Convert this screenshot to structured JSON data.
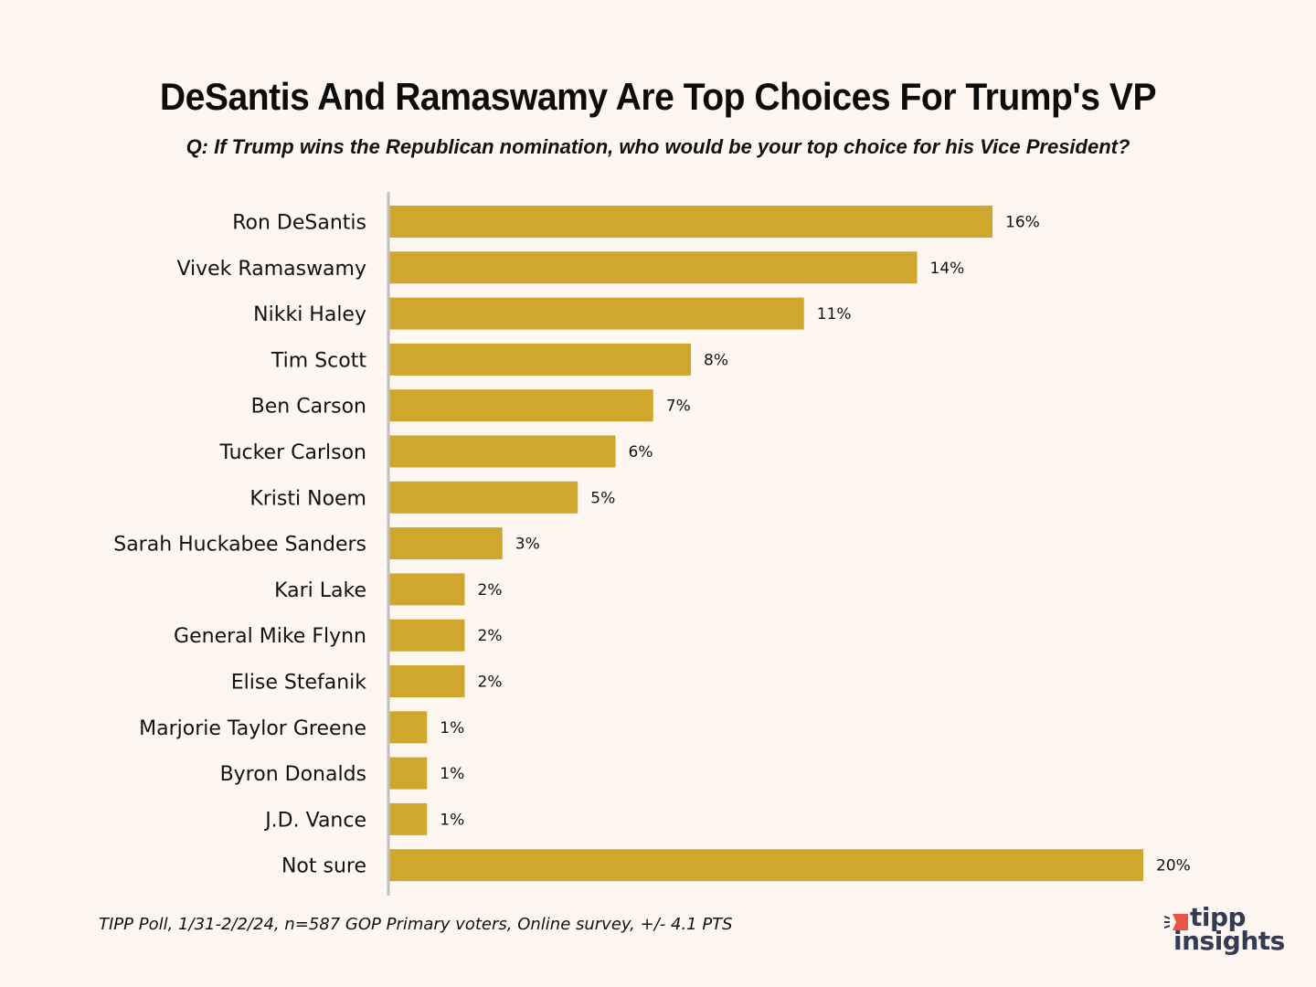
{
  "header": {
    "title": "DeSantis And Ramaswamy Are Top Choices For Trump's VP",
    "subtitle": "Q: If Trump wins the Republican nomination, who would be your top choice for his Vice President?"
  },
  "footer": {
    "source": "TIPP Poll, 1/31-2/2/24, n=587 GOP Primary voters, Online survey, +/- 4.1 PTS"
  },
  "logo": {
    "line1": "tipp",
    "line2": "insights",
    "accent_color": "#e8544a",
    "text_color": "#363a52"
  },
  "colors": {
    "bar": "#cfa72f",
    "axis": "#c0bfc4",
    "background": "#fdf6f1"
  },
  "chart_data": {
    "type": "bar",
    "orientation": "horizontal",
    "title": "DeSantis And Ramaswamy Are Top Choices For Trump's VP",
    "subtitle": "Q: If Trump wins the Republican nomination, who would be your top choice for his Vice President?",
    "xlabel": "",
    "ylabel": "",
    "unit": "%",
    "xlim": [
      0,
      20
    ],
    "grid": false,
    "legend": "none",
    "categories": [
      "Ron DeSantis",
      "Vivek Ramaswamy",
      "Nikki Haley",
      "Tim Scott",
      "Ben Carson",
      "Tucker Carlson",
      "Kristi Noem",
      "Sarah Huckabee Sanders",
      "Kari Lake",
      "General Mike Flynn",
      "Elise Stefanik",
      "Marjorie Taylor Greene",
      "Byron Donalds",
      "J.D. Vance",
      "Not sure"
    ],
    "values": [
      16,
      14,
      11,
      8,
      7,
      6,
      5,
      3,
      2,
      2,
      2,
      1,
      1,
      1,
      20
    ],
    "data_labels": [
      "16%",
      "14%",
      "11%",
      "8%",
      "7%",
      "6%",
      "5%",
      "3%",
      "2%",
      "2%",
      "2%",
      "1%",
      "1%",
      "1%",
      "20%"
    ]
  }
}
